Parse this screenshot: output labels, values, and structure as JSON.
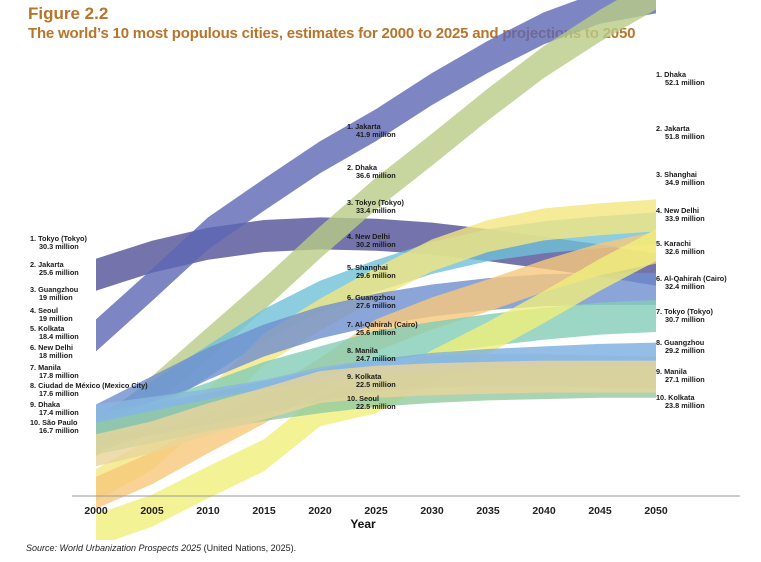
{
  "figure_label": "Figure 2.2",
  "title": "The world’s 10 most populous cities, estimates for 2000 to 2025 and projections to 2050",
  "source_italic": "Source: World Urbanization Prospects 2025",
  "source_rest": " (United Nations, 2025).",
  "chart_data": {
    "type": "area",
    "subtype": "bump-ribbon",
    "xlabel": "Year",
    "x": [
      2000,
      2005,
      2010,
      2015,
      2020,
      2025,
      2030,
      2035,
      2040,
      2045,
      2050
    ],
    "grid": false,
    "rank_labels": {
      "2000": [
        {
          "name": "1. Tokyo (Tokyo)",
          "value": "30.3 million"
        },
        {
          "name": "2. Jakarta",
          "value": "25.6 million"
        },
        {
          "name": "3. Guangzhou",
          "value": "19 million"
        },
        {
          "name": "4. Seoul",
          "value": "19 million"
        },
        {
          "name": "5. Kolkata",
          "value": "18.4 million"
        },
        {
          "name": "6. New Delhi",
          "value": "18 million"
        },
        {
          "name": "7. Manila",
          "value": "17.8 million"
        },
        {
          "name": "8. Ciudad de México (Mexico City)",
          "value": "17.6 million"
        },
        {
          "name": "9. Dhaka",
          "value": "17.4 million"
        },
        {
          "name": "10. São Paulo",
          "value": "16.7 million"
        }
      ],
      "2025": [
        {
          "name": "1. Jakarta",
          "value": "41.9 million"
        },
        {
          "name": "2. Dhaka",
          "value": "36.6 million"
        },
        {
          "name": "3. Tokyo (Tokyo)",
          "value": "33.4 million"
        },
        {
          "name": "4. New Delhi",
          "value": "30.2 million"
        },
        {
          "name": "5. Shanghai",
          "value": "29.6 million"
        },
        {
          "name": "6. Guangzhou",
          "value": "27.6 million"
        },
        {
          "name": "7. Al-Qahirah (Cairo)",
          "value": "25.6 million"
        },
        {
          "name": "8. Manila",
          "value": "24.7 million"
        },
        {
          "name": "9. Kolkata",
          "value": "22.5 million"
        },
        {
          "name": "10. Seoul",
          "value": "22.5 million"
        }
      ],
      "2050": [
        {
          "name": "1. Dhaka",
          "value": "52.1 million"
        },
        {
          "name": "2. Jakarta",
          "value": "51.8 million"
        },
        {
          "name": "3. Shanghai",
          "value": "34.9 million"
        },
        {
          "name": "4. New Delhi",
          "value": "33.9 million"
        },
        {
          "name": "5. Karachi",
          "value": "32.6 million"
        },
        {
          "name": "6. Al-Qahirah (Cairo)",
          "value": "32.4 million"
        },
        {
          "name": "7. Tokyo (Tokyo)",
          "value": "30.7 million"
        },
        {
          "name": "8. Guangzhou",
          "value": "29.2 million"
        },
        {
          "name": "9. Manila",
          "value": "27.1 million"
        },
        {
          "name": "10. Kolkata",
          "value": "23.8 million"
        }
      ]
    },
    "series": [
      {
        "key": "tokyo",
        "color": "#5c5a9c",
        "opacity": 0.85,
        "values": [
          30.3,
          31.7,
          32.7,
          33.3,
          33.5,
          33.4,
          33.1,
          32.6,
          32.0,
          31.4,
          30.7
        ]
      },
      {
        "key": "jakarta",
        "color": "#5d67b4",
        "opacity": 0.8,
        "values": [
          25.6,
          29.5,
          33.5,
          36.5,
          39.4,
          41.9,
          44.7,
          47.2,
          49.4,
          51.0,
          51.8
        ]
      },
      {
        "key": "dhaka",
        "color": "#b9cc86",
        "opacity": 0.8,
        "values": [
          17.4,
          21.2,
          25.0,
          28.8,
          32.8,
          36.6,
          40.0,
          43.5,
          46.8,
          49.6,
          52.1
        ]
      },
      {
        "key": "new-delhi",
        "color": "#6fc0d8",
        "opacity": 0.8,
        "values": [
          18.0,
          20.8,
          23.6,
          26.4,
          28.6,
          30.2,
          31.6,
          32.6,
          33.2,
          33.6,
          33.9
        ]
      },
      {
        "key": "shanghai",
        "color": "#f2e680",
        "opacity": 0.8,
        "values": [
          14.0,
          16.4,
          20.2,
          24.5,
          27.2,
          29.6,
          31.8,
          33.3,
          34.2,
          34.6,
          34.9
        ]
      },
      {
        "key": "guangzhou",
        "color": "#6f8fd0",
        "opacity": 0.8,
        "values": [
          19.0,
          21.2,
          23.4,
          25.2,
          26.6,
          27.6,
          28.3,
          28.8,
          29.1,
          29.2,
          29.2
        ]
      },
      {
        "key": "cairo",
        "color": "#f8c87a",
        "opacity": 0.8,
        "values": [
          13.4,
          15.3,
          17.7,
          20.0,
          22.6,
          25.6,
          27.3,
          28.7,
          30.2,
          31.5,
          32.4
        ]
      },
      {
        "key": "manila",
        "color": "#82cdb5",
        "opacity": 0.8,
        "values": [
          17.8,
          19.2,
          20.7,
          22.3,
          23.5,
          24.7,
          25.4,
          26.0,
          26.5,
          26.9,
          27.1
        ]
      },
      {
        "key": "karachi",
        "color": "#f0ef7a",
        "opacity": 0.8,
        "values": [
          10.5,
          12.0,
          14.2,
          16.3,
          19.8,
          20.8,
          23.2,
          25.4,
          27.8,
          30.3,
          32.6
        ]
      },
      {
        "key": "kolkata",
        "color": "#7aaee0",
        "opacity": 0.8,
        "values": [
          18.4,
          19.1,
          19.9,
          20.8,
          21.7,
          22.5,
          23.0,
          23.3,
          23.5,
          23.7,
          23.8
        ]
      },
      {
        "key": "seoul",
        "color": "#8ab8e0",
        "opacity": 0.8,
        "values": [
          19.0,
          19.6,
          20.2,
          20.9,
          21.9,
          22.5,
          22.8,
          22.9,
          22.9,
          22.8,
          22.7
        ]
      },
      {
        "key": "mexico-city",
        "color": "#92c9a0",
        "opacity": 0.8,
        "values": [
          17.6,
          18.5,
          19.4,
          20.2,
          20.8,
          21.3,
          21.6,
          21.8,
          21.9,
          22.0,
          22.0
        ]
      },
      {
        "key": "sao-paulo",
        "color": "#e8d49a",
        "opacity": 0.8,
        "values": [
          16.7,
          17.7,
          19.1,
          20.3,
          21.6,
          22.0,
          22.2,
          22.3,
          22.4,
          22.4,
          22.4
        ]
      }
    ]
  }
}
